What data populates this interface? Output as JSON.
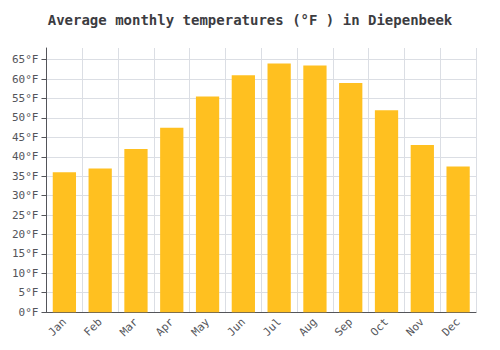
{
  "chart_data": {
    "type": "bar",
    "title": "Average monthly temperatures (°F ) in Diepenbeek",
    "categories": [
      "Jan",
      "Feb",
      "Mar",
      "Apr",
      "May",
      "Jun",
      "Jul",
      "Aug",
      "Sep",
      "Oct",
      "Nov",
      "Dec"
    ],
    "values": [
      36,
      37,
      42,
      47.5,
      55.5,
      61,
      64,
      63.5,
      59,
      52,
      43,
      37.5
    ],
    "color": "#FFC020",
    "ylim": [
      0,
      68
    ],
    "yticks": [
      {
        "value": 0,
        "label": "0°F"
      },
      {
        "value": 5,
        "label": "5°F"
      },
      {
        "value": 10,
        "label": "10°F"
      },
      {
        "value": 15,
        "label": "15°F"
      },
      {
        "value": 20,
        "label": "20°F"
      },
      {
        "value": 25,
        "label": "25°F"
      },
      {
        "value": 30,
        "label": "30°F"
      },
      {
        "value": 35,
        "label": "35°F"
      },
      {
        "value": 40,
        "label": "40°F"
      },
      {
        "value": 45,
        "label": "45°F"
      },
      {
        "value": 50,
        "label": "50°F"
      },
      {
        "value": 55,
        "label": "55°F"
      },
      {
        "value": 60,
        "label": "60°F"
      },
      {
        "value": 65,
        "label": "65°F"
      }
    ],
    "grid": true
  }
}
